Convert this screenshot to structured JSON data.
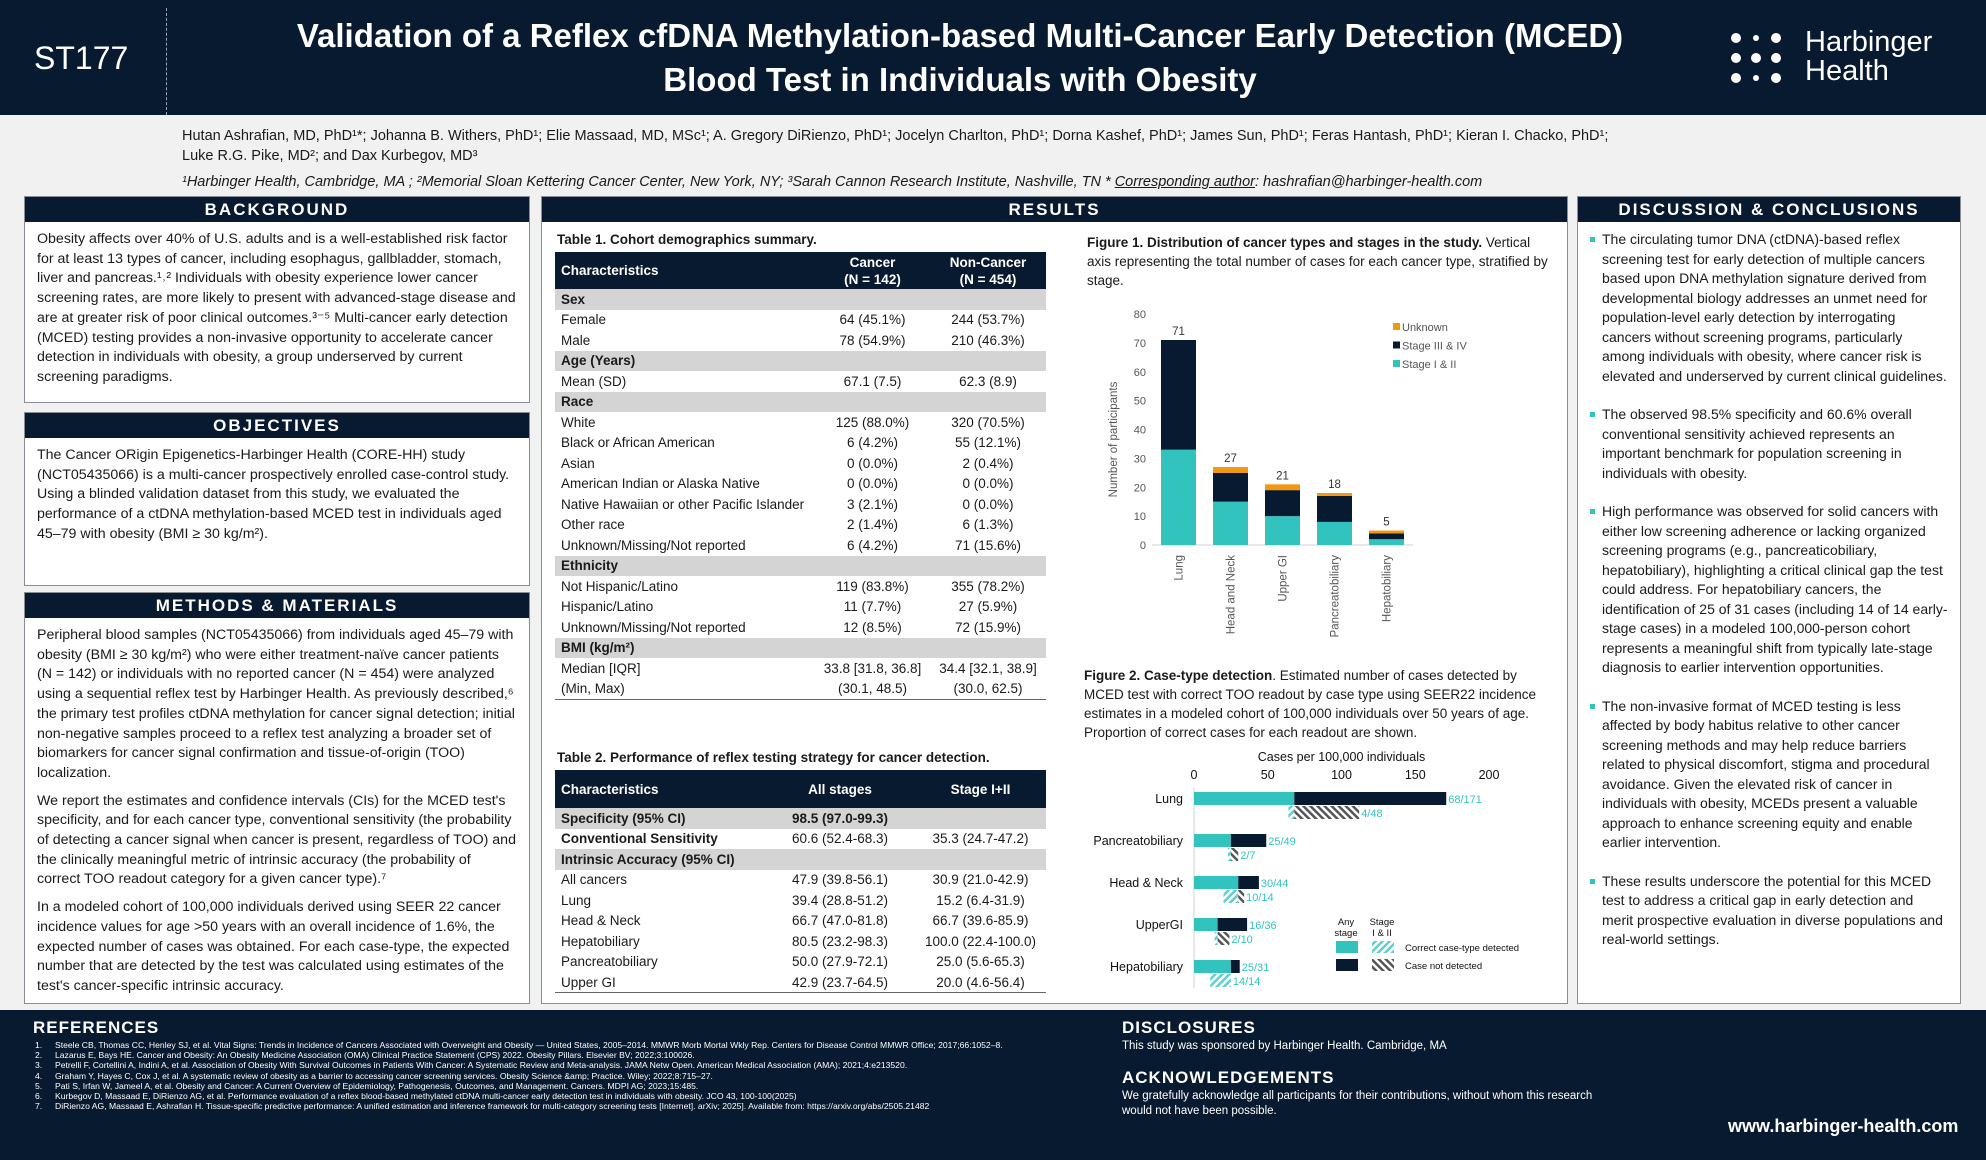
{
  "header": {
    "poster_id": "ST177",
    "title_line1": "Validation of a Reflex cfDNA Methylation-based Multi-Cancer Early Detection (MCED)",
    "title_line2": "Blood Test in Individuals with Obesity",
    "logo_line1": "Harbinger",
    "logo_line2": "Health",
    "authors_line1": "Hutan Ashrafian, MD, PhD¹*; Johanna B. Withers, PhD¹; Elie Massaad, MD, MSc¹; A. Gregory DiRienzo, PhD¹; Jocelyn Charlton, PhD¹; Dorna Kashef, PhD¹; James Sun, PhD¹; Feras Hantash, PhD¹; Kieran I. Chacko, PhD¹;",
    "authors_line2": "Luke R.G. Pike, MD²; and Dax Kurbegov, MD³",
    "affiliations": "¹Harbinger Health, Cambridge, MA ; ²Memorial Sloan Kettering Cancer Center, New York, NY; ³Sarah Cannon Research Institute, Nashville, TN * ",
    "corresponding_label": "Corresponding author",
    "corresponding_email": ": hashrafian@harbinger-health.com"
  },
  "background": {
    "heading": "BACKGROUND",
    "text": "Obesity affects over 40% of U.S. adults and is a well-established risk factor for at least 13 types of cancer, including esophagus, gallbladder, stomach, liver and pancreas.¹˒² Individuals with obesity experience lower cancer screening rates, are more likely to present with advanced-stage disease and are at greater risk of poor clinical outcomes.³⁻⁵ Multi-cancer early detection (MCED) testing provides a non-invasive opportunity to accelerate cancer detection in individuals with obesity, a group underserved by current screening paradigms."
  },
  "objectives": {
    "heading": "OBJECTIVES",
    "text": "The Cancer ORigin Epigenetics-Harbinger Health (CORE-HH) study (NCT05435066) is a multi-cancer prospectively enrolled case-control study. Using a blinded validation dataset from this study, we evaluated the performance of a ctDNA methylation-based MCED test in individuals aged 45–79 with obesity (BMI ≥ 30 kg/m²)."
  },
  "methods": {
    "heading": "METHODS & MATERIALS",
    "paragraphs": [
      "Peripheral blood samples (NCT05435066) from individuals aged 45–79 with obesity (BMI ≥ 30 kg/m²) who were either treatment-naïve cancer patients (N = 142) or individuals with no reported cancer (N = 454) were analyzed using a sequential reflex test by Harbinger Health.  As previously described,⁶ the primary test profiles ctDNA methylation for cancer signal detection; initial non-negative samples proceed to a reflex test analyzing a broader set of biomarkers for cancer signal confirmation and tissue-of-origin (TOO) localization.",
      "We report the estimates and confidence intervals (CIs) for the MCED test's specificity, and for each cancer type, conventional sensitivity (the probability of detecting a cancer signal when cancer is present, regardless of TOO) and the clinically meaningful metric of intrinsic accuracy (the probability of correct TOO readout category for a given cancer type).⁷",
      "In a modeled cohort of 100,000 individuals derived using SEER 22 cancer incidence values for age >50 years with an overall incidence of 1.6%, the expected number of cases was obtained. For each case-type, the expected number that are detected by the test was calculated using estimates of the test's cancer-specific intrinsic accuracy."
    ]
  },
  "results": {
    "heading": "RESULTS",
    "table1": {
      "caption": "Table 1. Cohort demographics summary.",
      "headers": [
        "Characteristics",
        "Cancer\n(N = 142)",
        "Non-Cancer\n(N = 454)"
      ],
      "rows": [
        {
          "section": "Sex"
        },
        {
          "cells": [
            "Female",
            "64 (45.1%)",
            "244 (53.7%)"
          ]
        },
        {
          "cells": [
            "Male",
            "78 (54.9%)",
            "210 (46.3%)"
          ]
        },
        {
          "section": "Age (Years)"
        },
        {
          "cells": [
            "Mean (SD)",
            "67.1 (7.5)",
            "62.3 (8.9)"
          ]
        },
        {
          "section": "Race"
        },
        {
          "cells": [
            "White",
            "125 (88.0%)",
            "320 (70.5%)"
          ]
        },
        {
          "cells": [
            "Black or African American",
            "6 (4.2%)",
            "55 (12.1%)"
          ]
        },
        {
          "cells": [
            "Asian",
            "0 (0.0%)",
            "2 (0.4%)"
          ]
        },
        {
          "cells": [
            "American Indian or Alaska Native",
            "0 (0.0%)",
            "0 (0.0%)"
          ]
        },
        {
          "cells": [
            "Native Hawaiian or other Pacific Islander",
            "3 (2.1%)",
            "0 (0.0%)"
          ]
        },
        {
          "cells": [
            "Other race",
            "2 (1.4%)",
            "6 (1.3%)"
          ]
        },
        {
          "cells": [
            "Unknown/Missing/Not reported",
            "6 (4.2%)",
            "71 (15.6%)"
          ]
        },
        {
          "section": "Ethnicity"
        },
        {
          "cells": [
            "Not Hispanic/Latino",
            "119 (83.8%)",
            "355 (78.2%)"
          ]
        },
        {
          "cells": [
            "Hispanic/Latino",
            "11 (7.7%)",
            "27 (5.9%)"
          ]
        },
        {
          "cells": [
            "Unknown/Missing/Not reported",
            "12 (8.5%)",
            "72 (15.9%)"
          ]
        },
        {
          "section": "BMI (kg/m²)"
        },
        {
          "cells": [
            "Median [IQR]",
            "33.8 [31.8, 36.8]",
            "34.4 [32.1, 38.9]"
          ]
        },
        {
          "cells": [
            "(Min, Max)",
            "(30.1, 48.5)",
            "(30.0, 62.5)"
          ]
        }
      ]
    },
    "table2": {
      "caption": "Table 2. Performance of reflex testing strategy for cancer detection.",
      "headers": [
        "Characteristics",
        "All stages",
        "Stage I+II"
      ],
      "rows": [
        {
          "section": "Specificity (95% CI)",
          "cells": [
            "Specificity (95% CI)",
            "98.5 (97.0-99.3)",
            ""
          ]
        },
        {
          "bold": true,
          "cells": [
            "Conventional Sensitivity",
            "60.6 (52.4-68.3)",
            "35.3 (24.7-47.2)"
          ]
        },
        {
          "section": "Intrinsic Accuracy (95% CI)"
        },
        {
          "cells": [
            "All cancers",
            "47.9 (39.8-56.1)",
            "30.9 (21.0-42.9)"
          ]
        },
        {
          "cells": [
            "Lung",
            "39.4 (28.8-51.2)",
            "15.2 (6.4-31.9)"
          ]
        },
        {
          "cells": [
            "Head & Neck",
            "66.7 (47.0-81.8)",
            "66.7 (39.6-85.9)"
          ]
        },
        {
          "cells": [
            "Hepatobiliary",
            "80.5 (23.2-98.3)",
            "100.0 (22.4-100.0)"
          ]
        },
        {
          "cells": [
            "Pancreatobiliary",
            "50.0 (27.9-72.1)",
            "25.0 (5.6-65.3)"
          ]
        },
        {
          "cells": [
            "Upper GI",
            "42.9 (23.7-64.5)",
            "20.0 (4.6-56.4)"
          ]
        }
      ]
    },
    "figure1_caption_bold": "Figure 1. Distribution of cancer types and stages in the study.",
    "figure1_caption": " Vertical axis representing the total number of cases for each cancer type, stratified by stage.",
    "figure2_caption_bold": "Figure 2. Case-type detection",
    "figure2_caption": ". Estimated number of cases detected by MCED test with correct TOO readout by case type using SEER22 incidence estimates in a modeled cohort of 100,000 individuals over 50 years of age. Proportion of correct cases for each readout are shown."
  },
  "chart_data": [
    {
      "type": "bar",
      "stacked": true,
      "categories": [
        "Lung",
        "Head and Neck",
        "Upper GI",
        "Pancreatobiliary",
        "Hepatobiliary"
      ],
      "series": [
        {
          "name": "Stage I & II",
          "color": "#33c3bf",
          "values": [
            33,
            15,
            10,
            8,
            2
          ]
        },
        {
          "name": "Stage III & IV",
          "color": "#071a2f",
          "values": [
            38,
            10,
            9,
            9,
            2
          ]
        },
        {
          "name": "Unknown",
          "color": "#f5960f",
          "values": [
            0,
            2,
            2,
            1,
            1
          ]
        }
      ],
      "totals": [
        71,
        27,
        21,
        18,
        5
      ],
      "ylabel": "Number of participants",
      "ylim": [
        0,
        80
      ],
      "yticks": [
        0,
        10,
        20,
        30,
        40,
        50,
        60,
        70,
        80
      ],
      "legend": "top-right",
      "legend_order": [
        "Unknown",
        "Stage III & IV",
        "Stage I & II"
      ],
      "grid": false
    },
    {
      "type": "bar",
      "orientation": "horizontal",
      "xlabel": "Cases per 100,000 individuals",
      "xlim": [
        0,
        200
      ],
      "xticks": [
        0,
        50,
        100,
        150,
        200
      ],
      "axis_position": "top",
      "categories": [
        "Lung",
        "Pancreatobiliary",
        "Head & Neck",
        "UpperGI",
        "Hepatobiliary"
      ],
      "any_stage": {
        "detected": [
          68,
          25,
          30,
          16,
          25
        ],
        "total": [
          171,
          49,
          44,
          36,
          31
        ],
        "labels": [
          "68/171",
          "25/49",
          "30/44",
          "16/36",
          "25/31"
        ]
      },
      "stage_I_II": {
        "detected": [
          4,
          2,
          10,
          2,
          14
        ],
        "total": [
          48,
          7,
          14,
          10,
          14
        ],
        "labels": [
          "4/48",
          "2/7",
          "10/14",
          "2/10",
          "14/14"
        ]
      },
      "colors": {
        "detected": "#33c3bf",
        "not_detected": "#071a2f",
        "label": "#33c3bf",
        "hatch_not_detected": "#555555"
      },
      "legend": {
        "col_any": "Any stage",
        "col_stage": "Stage I & II",
        "row_detected": "Correct case-type detected",
        "row_not_detected": "Case not detected",
        "placement": "bottom-right"
      }
    }
  ],
  "discussion": {
    "heading": "DISCUSSION & CONCLUSIONS",
    "bullets": [
      "The circulating tumor DNA (ctDNA)-based reflex screening test for early detection of multiple cancers based upon DNA methylation signature derived from developmental biology addresses an unmet need for population-level early detection by interrogating cancers without screening programs, particularly among individuals with obesity, where cancer risk is elevated and underserved by current clinical guidelines.",
      "The observed 98.5% specificity and 60.6% overall conventional sensitivity achieved represents an important benchmark for population screening in individuals with obesity.",
      "High performance was observed for solid cancers with either low screening adherence or lacking organized screening programs (e.g., pancreaticobiliary, hepatobiliary), highlighting a critical clinical gap the test could address. For hepatobiliary cancers, the identification of 25 of 31 cases (including 14 of 14 early-stage cases) in a modeled 100,000-person cohort represents a meaningful shift from typically late-stage diagnosis to earlier intervention opportunities.",
      "The non-invasive format of MCED testing is less affected by body habitus relative to other cancer screening methods and may help reduce barriers related to physical discomfort, stigma and procedural avoidance. Given the elevated risk of cancer in individuals with obesity, MCEDs present a valuable approach to enhance screening equity and enable earlier intervention.",
      " These results underscore the potential for this MCED test to address a critical gap in early detection and merit prospective evaluation in diverse populations and real-world settings."
    ]
  },
  "footer": {
    "references_heading": "REFERENCES",
    "references": [
      "Steele CB, Thomas CC, Henley SJ, et al. Vital Signs: Trends in Incidence of Cancers Associated with Overweight and Obesity — United States, 2005–2014. MMWR Morb Mortal Wkly Rep. Centers for Disease Control MMWR Office; 2017;66:1052–8.",
      "Lazarus E, Bays HE. Cancer and Obesity: An Obesity Medicine Association (OMA) Clinical Practice Statement (CPS) 2022. Obesity Pillars. Elsevier BV; 2022;3:100026.",
      "Petrelli F, Cortellini A, Indini A, et al. Association of Obesity With Survival Outcomes in Patients With Cancer: A Systematic Review and Meta-analysis. JAMA Netw Open. American Medical Association (AMA); 2021;4:e213520.",
      "Graham Y, Hayes C, Cox J, et al. A systematic review of obesity as a barrier to accessing cancer screening services. Obesity Science &amp; Practice. Wiley; 2022;8:715–27.",
      "Pati S, Irfan W, Jameel A, et al. Obesity and Cancer: A Current Overview of Epidemiology, Pathogenesis, Outcomes, and Management. Cancers. MDPI AG; 2023;15:485.",
      "Kurbegov D, Massaad E, DiRienzo AG, et al. Performance evaluation of a reflex blood-based methylated ctDNA multi-cancer early detection test in individuals with obesity. JCO 43, 100-100(2025)",
      "DiRienzo AG, Massaad E, Ashrafian H. Tissue-specific predictive performance: A unified estimation and inference framework for multi-category screening tests [Internet]. arXiv; 2025]. Available from: https://arxiv.org/abs/2505.21482"
    ],
    "disclosures_heading": "DISCLOSURES",
    "disclosures": "This study was sponsored by Harbinger Health. Cambridge, MA",
    "acknowledgements_heading": "ACKNOWLEDGEMENTS",
    "acknowledgements": "We gratefully acknowledge all participants for their contributions, without whom this research would not have been possible.",
    "website": "www.harbinger-health.com"
  }
}
